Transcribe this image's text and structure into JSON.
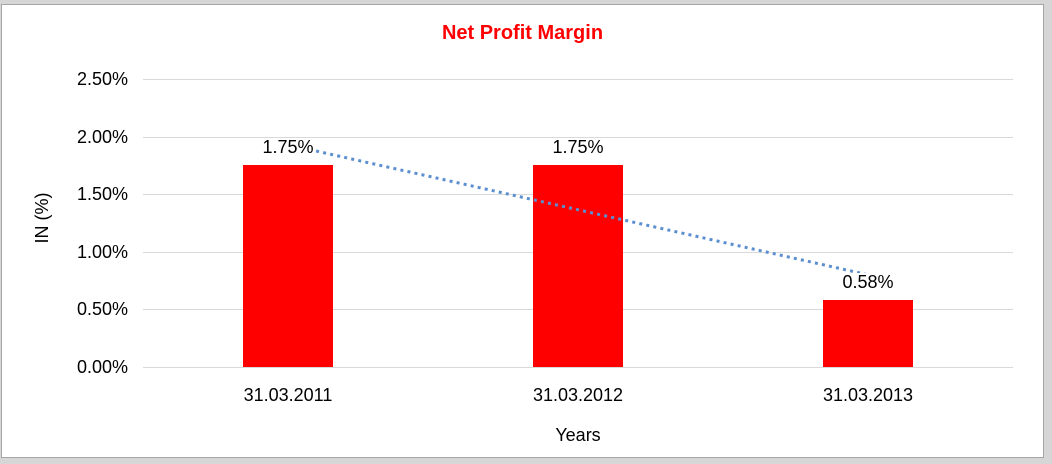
{
  "frame": {
    "background_color": "#d6d6d6",
    "panel_background": "#ffffff",
    "panel_border_color": "#a6a6a6"
  },
  "chart_data": {
    "type": "bar",
    "title": "Net Profit Margin",
    "title_color": "#ff0000",
    "categories": [
      "31.03.2011",
      "31.03.2012",
      "31.03.2013"
    ],
    "values": [
      1.75,
      1.75,
      0.58
    ],
    "data_labels": [
      "1.75%",
      "1.75%",
      "0.58%"
    ],
    "bar_color": "#ff0000",
    "xlabel": "Years",
    "ylabel": "IN (%)",
    "ylim": [
      0,
      2.5
    ],
    "ytick_step": 0.5,
    "ytick_labels": [
      "0.00%",
      "0.50%",
      "1.00%",
      "1.50%",
      "2.00%",
      "2.50%"
    ],
    "gridline_color": "#d9d9d9",
    "grid": "horizontal",
    "legend": "none",
    "text_color": "#000000",
    "trendline": {
      "type": "linear",
      "style": "dotted",
      "color": "#5b8fd0",
      "start_value": 1.93,
      "end_value": 0.8
    }
  }
}
